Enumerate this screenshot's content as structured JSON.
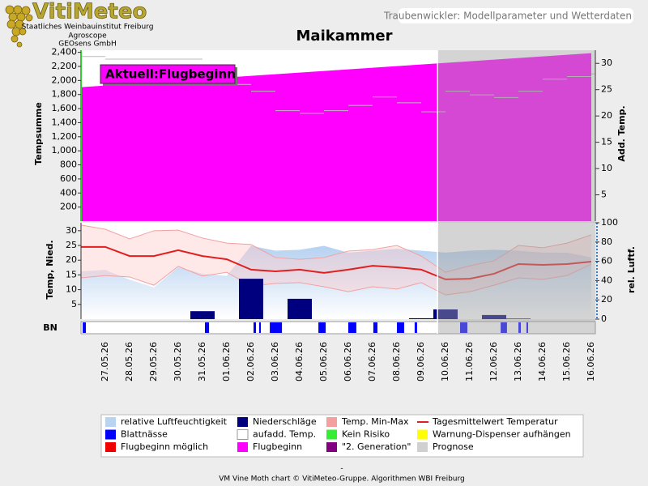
{
  "header": {
    "logo": "VitiMeteo",
    "institutions": [
      "Staatliches Weinbauinstitut Freiburg",
      "Agroscope",
      "GEOsens GmbH"
    ],
    "banner": "Traubenwickler: Modellparameter und Wetterdaten"
  },
  "chart_data": {
    "type": "combo",
    "title": "Maikammer",
    "annotation": "Aktuell:Flugbeginn",
    "strip_label": "BN",
    "categories": [
      null,
      "27.05.26",
      "28.05.26",
      "29.05.26",
      "30.05.26",
      "31.05.26",
      "01.06.26",
      "02.06.26",
      "03.06.26",
      "04.06.26",
      "05.06.26",
      "06.06.26",
      "07.06.26",
      "08.06.26",
      "09.06.26",
      "10.06.26",
      "11.06.26",
      "12.06.26",
      "13.06.26",
      "14.06.26",
      "15.06.26",
      "16.06.26"
    ],
    "ylabel": "Temp, Nied.",
    "ylim": [
      0,
      32.7
    ],
    "yticks": [
      5,
      10,
      15,
      20,
      25,
      30
    ],
    "y2label": "rel. Luftf.",
    "y2lim": [
      0,
      100
    ],
    "y2ticks": [
      0,
      20,
      40,
      60,
      80,
      100
    ],
    "y3label": "Tempsumme",
    "y3lim": [
      0,
      2430
    ],
    "y3ticks": [
      200,
      400,
      600,
      800,
      {
        "value": 1000,
        "label": "1,000"
      },
      {
        "value": 1200,
        "label": "1,200"
      },
      {
        "value": 1400,
        "label": "1,400"
      },
      {
        "value": 1600,
        "label": "1,600"
      },
      {
        "value": 1800,
        "label": "1,800"
      },
      {
        "value": 2000,
        "label": "2,000"
      },
      {
        "value": 2200,
        "label": "2,200"
      },
      {
        "value": 2400,
        "label": "2,400"
      }
    ],
    "y4label": "Add. Temp.",
    "y4lim": [
      0,
      32.5
    ],
    "y4ticks": [
      5,
      10,
      15,
      20,
      25,
      30
    ],
    "series": [
      {
        "name": "relative Luftfeuchtigkeit",
        "color": "#b8d4f0",
        "kind": "area",
        "axis": "y2",
        "values": [
          49.6,
          51,
          41,
          33,
          54,
          47,
          45,
          76,
          71,
          72,
          76,
          69,
          71,
          73,
          71,
          69,
          71,
          72,
          71,
          69,
          69,
          64
        ]
      },
      {
        "name": "Niederschläge",
        "color": "#00007f",
        "kind": "bar",
        "axis": "y",
        "values": [
          0,
          0,
          0,
          0,
          0,
          2.7,
          0,
          13.7,
          0,
          6.9,
          0,
          0,
          0,
          0,
          0.3,
          3.3,
          0,
          1.4,
          0.2,
          0,
          0,
          0
        ]
      },
      {
        "name": "Temp. Min-Max",
        "color": "#f4a0a0",
        "kind": "band",
        "axis": "y",
        "low": [
          14,
          14.8,
          14.3,
          11.5,
          17.9,
          14.6,
          15.9,
          11.3,
          12.1,
          12.4,
          11,
          9.3,
          11,
          10.2,
          12.4,
          8.2,
          9.3,
          11.5,
          14,
          13.5,
          14.8,
          18.7
        ],
        "high": [
          31.9,
          30.5,
          27.2,
          30,
          30.2,
          27.5,
          25.8,
          25.3,
          20.9,
          20.3,
          20.9,
          23.1,
          23.6,
          25,
          21.4,
          15.9,
          18.1,
          19.8,
          25,
          24.2,
          25.8,
          28.6
        ]
      },
      {
        "name": "Tagesmittelwert Temperatur",
        "color": "#e02020",
        "kind": "line",
        "axis": "y",
        "values": [
          24.5,
          24.5,
          21.4,
          21.4,
          23.4,
          21.4,
          20.3,
          16.8,
          16.2,
          16.8,
          15.7,
          16.8,
          18.1,
          17.6,
          16.8,
          13.5,
          13.7,
          15.4,
          18.7,
          18.4,
          18.7,
          19.5
        ]
      },
      {
        "name": "Blattnässe",
        "color": "#0000ff",
        "kind": "intervals",
        "intervals": [
          [
            0.07,
            0.2
          ],
          [
            5.1,
            5.27
          ],
          [
            7.1,
            7.2
          ],
          [
            7.33,
            7.4
          ],
          [
            7.77,
            8.27
          ],
          [
            9.77,
            10.07
          ],
          [
            11,
            11.33
          ],
          [
            12.03,
            12.2
          ],
          [
            13,
            13.3
          ],
          [
            13.73,
            13.83
          ],
          [
            15.6,
            15.9
          ],
          [
            17.27,
            17.53
          ],
          [
            18,
            18.1
          ],
          [
            18.33,
            18.4
          ]
        ]
      },
      {
        "name": "aufadd. Temp.",
        "color": "#ffffff",
        "kind": "step",
        "axis": "y4",
        "values": [
          31.3,
          30.8,
          30.8,
          30.8,
          30.8,
          28.5,
          26,
          24.7,
          21,
          20.5,
          21,
          22,
          23.6,
          22.5,
          20.8,
          24.7,
          24,
          23.5,
          24.7,
          27,
          27.5,
          28
        ]
      },
      {
        "name": "Kein Risiko",
        "color": "#33ee33"
      },
      {
        "name": "Warnung-Dispenser aufhängen",
        "color": "#ffff00"
      },
      {
        "name": "Flugbeginn möglich",
        "color": "#ee0000"
      },
      {
        "name": "Flugbeginn",
        "color": "#ff00ff",
        "kind": "area",
        "axis": "y3",
        "values": [
          1905,
          1928,
          1951,
          1974,
          1997,
          2020,
          2043,
          2066,
          2089,
          2112,
          2135,
          2158,
          2181,
          2204,
          2227,
          2250,
          2273,
          2296,
          2319,
          2342,
          2365,
          2388
        ]
      },
      {
        "name": "\"2. Generation\"",
        "color": "#800080"
      },
      {
        "name": "Prognose",
        "color": "#d0d0d0",
        "kind": "shade",
        "span": [
          14.67,
          21.17
        ]
      }
    ]
  },
  "footer": {
    "dash": "-",
    "credit": "VM Vine Moth chart © VitiMeteo-Gruppe. Algorithmen WBI Freiburg"
  }
}
